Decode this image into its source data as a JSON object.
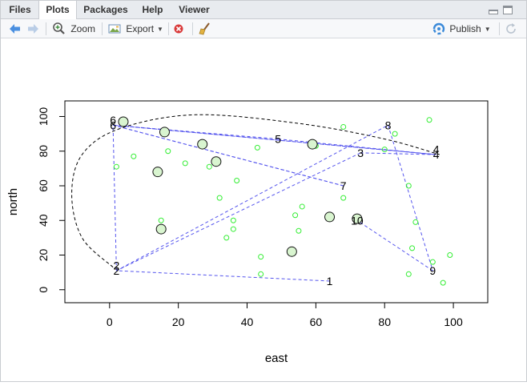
{
  "tabs": [
    {
      "label": "Files",
      "active": false
    },
    {
      "label": "Plots",
      "active": true
    },
    {
      "label": "Packages",
      "active": false
    },
    {
      "label": "Help",
      "active": false
    },
    {
      "label": "Viewer",
      "active": false
    }
  ],
  "toolbar": {
    "zoom_label": "Zoom",
    "export_label": "Export",
    "publish_label": "Publish",
    "icons": {
      "back": "arrow-left-icon",
      "forward": "arrow-right-icon",
      "zoom": "magnifier-icon",
      "export": "export-image-icon",
      "remove": "remove-plot-icon",
      "clear": "broom-icon",
      "publish": "rstudio-connect-icon",
      "refresh": "refresh-icon"
    }
  },
  "chart_data": {
    "type": "scatter",
    "xlabel": "east",
    "ylabel": "north",
    "xlim": [
      -13,
      110
    ],
    "ylim": [
      -7.5,
      109
    ],
    "x_ticks": [
      "0",
      "20",
      "40",
      "60",
      "80",
      "100"
    ],
    "y_ticks": [
      "0",
      "20",
      "40",
      "60",
      "80",
      "100"
    ],
    "grid": false,
    "colors": {
      "small_points": "#33ee33",
      "large_points": "#111111",
      "large_fill": "#d9f5d0",
      "route": "#5555ee",
      "hull": "#000000"
    },
    "small_points": [
      {
        "x": 2,
        "y": 71
      },
      {
        "x": 7,
        "y": 77
      },
      {
        "x": 15,
        "y": 40
      },
      {
        "x": 17,
        "y": 80
      },
      {
        "x": 22,
        "y": 73
      },
      {
        "x": 29,
        "y": 71
      },
      {
        "x": 32,
        "y": 53
      },
      {
        "x": 34,
        "y": 30
      },
      {
        "x": 36,
        "y": 35
      },
      {
        "x": 36,
        "y": 40
      },
      {
        "x": 37,
        "y": 63
      },
      {
        "x": 43,
        "y": 82
      },
      {
        "x": 44,
        "y": 19
      },
      {
        "x": 44,
        "y": 9
      },
      {
        "x": 54,
        "y": 43
      },
      {
        "x": 55,
        "y": 34
      },
      {
        "x": 56,
        "y": 48
      },
      {
        "x": 60,
        "y": 83
      },
      {
        "x": 68,
        "y": 53
      },
      {
        "x": 68,
        "y": 94
      },
      {
        "x": 80,
        "y": 81
      },
      {
        "x": 83,
        "y": 90
      },
      {
        "x": 87,
        "y": 60
      },
      {
        "x": 87,
        "y": 9
      },
      {
        "x": 88,
        "y": 24
      },
      {
        "x": 89,
        "y": 39
      },
      {
        "x": 93,
        "y": 98
      },
      {
        "x": 94,
        "y": 16
      },
      {
        "x": 97,
        "y": 4
      },
      {
        "x": 99,
        "y": 20
      }
    ],
    "large_points": [
      {
        "x": 4,
        "y": 97,
        "size": 6
      },
      {
        "x": 14,
        "y": 68,
        "size": 6
      },
      {
        "x": 15,
        "y": 35,
        "size": 6
      },
      {
        "x": 16,
        "y": 91,
        "size": 6
      },
      {
        "x": 27,
        "y": 84,
        "size": 6
      },
      {
        "x": 31,
        "y": 74,
        "size": 6
      },
      {
        "x": 53,
        "y": 22,
        "size": 6
      },
      {
        "x": 59,
        "y": 84,
        "size": 6
      },
      {
        "x": 64,
        "y": 42,
        "size": 6
      },
      {
        "x": 72,
        "y": 41,
        "size": 6
      }
    ],
    "labeled_points": [
      {
        "label": "1",
        "x": 64,
        "y": 5
      },
      {
        "label": "2",
        "x": 2,
        "y": 11
      },
      {
        "label": "2",
        "x": 2,
        "y": 14
      },
      {
        "label": "3",
        "x": 73,
        "y": 79
      },
      {
        "label": "4",
        "x": 95,
        "y": 78
      },
      {
        "label": "4",
        "x": 95,
        "y": 81
      },
      {
        "label": "5",
        "x": 49,
        "y": 87
      },
      {
        "label": "6",
        "x": 1,
        "y": 95
      },
      {
        "label": "6",
        "x": 1,
        "y": 98
      },
      {
        "label": "7",
        "x": 68,
        "y": 60
      },
      {
        "label": "8",
        "x": 81,
        "y": 95
      },
      {
        "label": "9",
        "x": 94,
        "y": 11
      },
      {
        "label": "10",
        "x": 72,
        "y": 40
      }
    ],
    "route": [
      {
        "x": 64,
        "y": 5
      },
      {
        "x": 2,
        "y": 11
      },
      {
        "x": 1,
        "y": 95
      },
      {
        "x": 95,
        "y": 78
      },
      {
        "x": 1,
        "y": 95
      },
      {
        "x": 68,
        "y": 60
      },
      {
        "x": 1,
        "y": 95
      },
      {
        "x": 49,
        "y": 87
      },
      {
        "x": 95,
        "y": 78
      },
      {
        "x": 73,
        "y": 79
      },
      {
        "x": 2,
        "y": 11
      },
      {
        "x": 81,
        "y": 95
      },
      {
        "x": 94,
        "y": 11
      },
      {
        "x": 72,
        "y": 40
      }
    ],
    "hull_curve": [
      {
        "x": 1,
        "y": 13
      },
      {
        "x": -8,
        "y": 30
      },
      {
        "x": -11,
        "y": 55
      },
      {
        "x": -8,
        "y": 78
      },
      {
        "x": 3,
        "y": 93
      },
      {
        "x": 25,
        "y": 101
      },
      {
        "x": 55,
        "y": 96
      },
      {
        "x": 80,
        "y": 87
      },
      {
        "x": 96,
        "y": 78
      }
    ]
  }
}
